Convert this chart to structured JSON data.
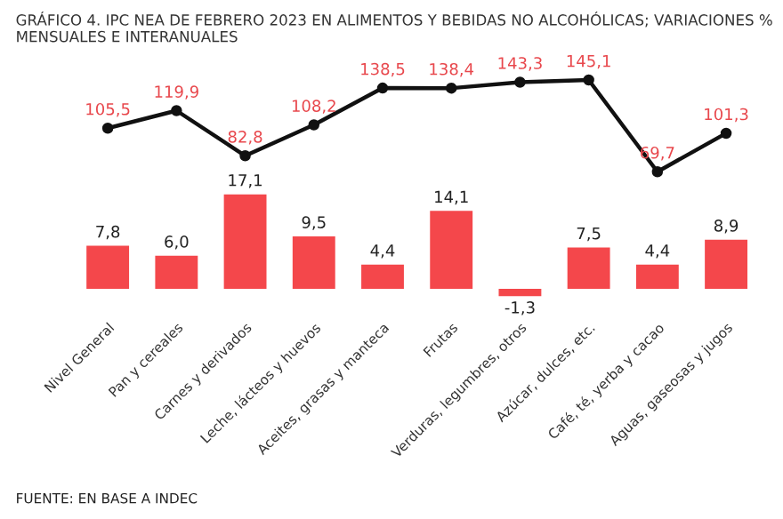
{
  "chart_data": [
    {
      "type": "line",
      "title": "GRÁFICO 4. IPC NEA DE FEBRERO 2023 EN ALIMENTOS Y BEBIDAS NO ALCOHÓLICAS; VARIACIONES % MENSUALES E INTERANUALES",
      "categories": [
        null,
        null,
        null,
        null,
        null,
        null,
        null,
        null,
        null,
        null
      ],
      "series": [
        {
          "type": "line",
          "color": "#111111",
          "values": [
            105.5,
            119.9,
            82.8,
            108.2,
            138.5,
            138.4,
            143.3,
            145.1,
            69.7,
            101.3
          ],
          "value_labels": [
            "105,5",
            "119,9",
            "82,8",
            "108,2",
            "138,5",
            "138,4",
            "143,3",
            "145,1",
            "69,7",
            "101,3"
          ]
        }
      ],
      "marker": "circle",
      "line_style": "solid",
      "tick_labels": false,
      "grid": false,
      "legend": false
    },
    {
      "type": "bar",
      "categories": [
        "Nivel General",
        "Pan y cereales",
        "Carnes y derivados",
        "Leche, lácteos y huevos",
        "Aceites, grasas y manteca",
        "Frutas",
        "Verduras, legumbres, otros",
        "Azúcar, dulces, etc.",
        "Café, té, yerba y cacao",
        "Aguas, gaseosas y jugos"
      ],
      "series": [
        {
          "type": "bar",
          "color": "#f4474b",
          "values": [
            7.8,
            6.0,
            17.1,
            9.5,
            4.4,
            14.1,
            -1.3,
            7.5,
            4.4,
            8.9
          ],
          "value_labels": [
            "7,8",
            "6,0",
            "17,1",
            "9,5",
            "4,4",
            "14,1",
            "-1,3",
            "7,5",
            "4,4",
            "8,9"
          ]
        }
      ],
      "tick_labels": "x",
      "grid": false,
      "legend": false,
      "annotations": [
        "FUENTE: EN BASE A INDEC"
      ]
    }
  ]
}
